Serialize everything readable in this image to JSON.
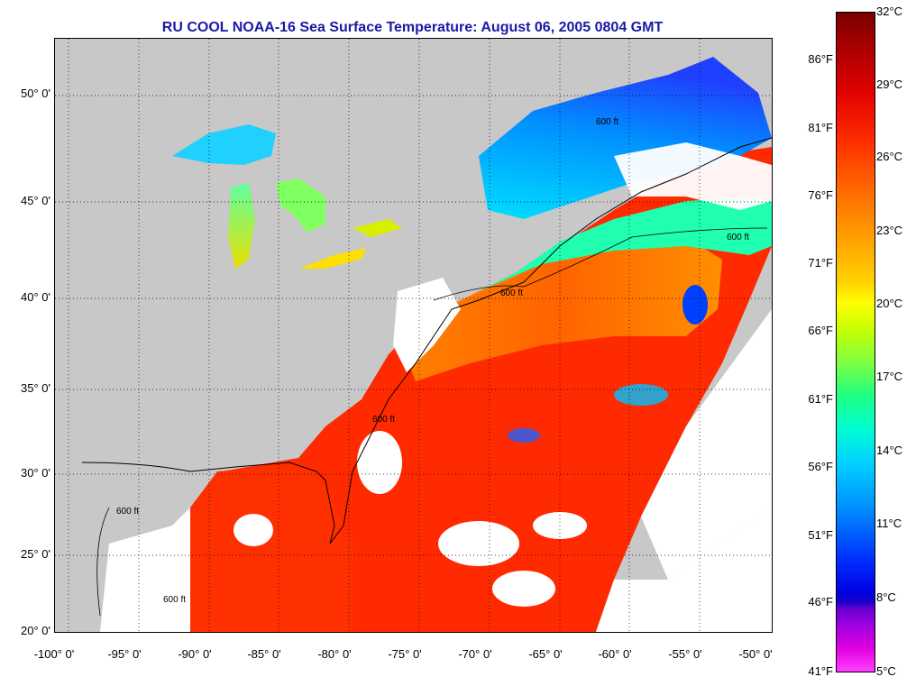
{
  "title": "RU COOL  NOAA-16  Sea Surface Temperature:  August 06, 2005 0804 GMT",
  "map": {
    "lat_ticks": [
      {
        "value": 50,
        "label": "50° 0'"
      },
      {
        "value": 45,
        "label": "45° 0'"
      },
      {
        "value": 40,
        "label": "40° 0'"
      },
      {
        "value": 35,
        "label": "35° 0'"
      },
      {
        "value": 30,
        "label": "30° 0'"
      },
      {
        "value": 25,
        "label": "25° 0'"
      },
      {
        "value": 20,
        "label": "20° 0'"
      }
    ],
    "lon_ticks": [
      {
        "value": -100,
        "label": "-100° 0'"
      },
      {
        "value": -95,
        "label": "-95° 0'"
      },
      {
        "value": -90,
        "label": "-90° 0'"
      },
      {
        "value": -85,
        "label": "-85° 0'"
      },
      {
        "value": -80,
        "label": "-80° 0'"
      },
      {
        "value": -75,
        "label": "-75° 0'"
      },
      {
        "value": -70,
        "label": "-70° 0'"
      },
      {
        "value": -65,
        "label": "-65° 0'"
      },
      {
        "value": -60,
        "label": "-60° 0'"
      },
      {
        "value": -55,
        "label": "-55° 0'"
      },
      {
        "value": -50,
        "label": "-50° 0'"
      }
    ],
    "isobath_labels": [
      "600 ft",
      "600 ft",
      "600 ft",
      "600 ft",
      "600 ft",
      "600 ft"
    ]
  },
  "colorbar": {
    "fahrenheit_labels": [
      "86°F",
      "81°F",
      "76°F",
      "71°F",
      "66°F",
      "61°F",
      "56°F",
      "51°F",
      "46°F",
      "41°F"
    ],
    "celsius_labels": [
      "32°C",
      "29°C",
      "26°C",
      "23°C",
      "20°C",
      "17°C",
      "14°C",
      "11°C",
      "8°C",
      "5°C"
    ]
  },
  "colors": {
    "land": "#c8c8c8",
    "warm_water": "#ff2a00",
    "cool_water": "#00d4ff",
    "cloud": "#ffffff",
    "title": "#1a1aa6"
  }
}
